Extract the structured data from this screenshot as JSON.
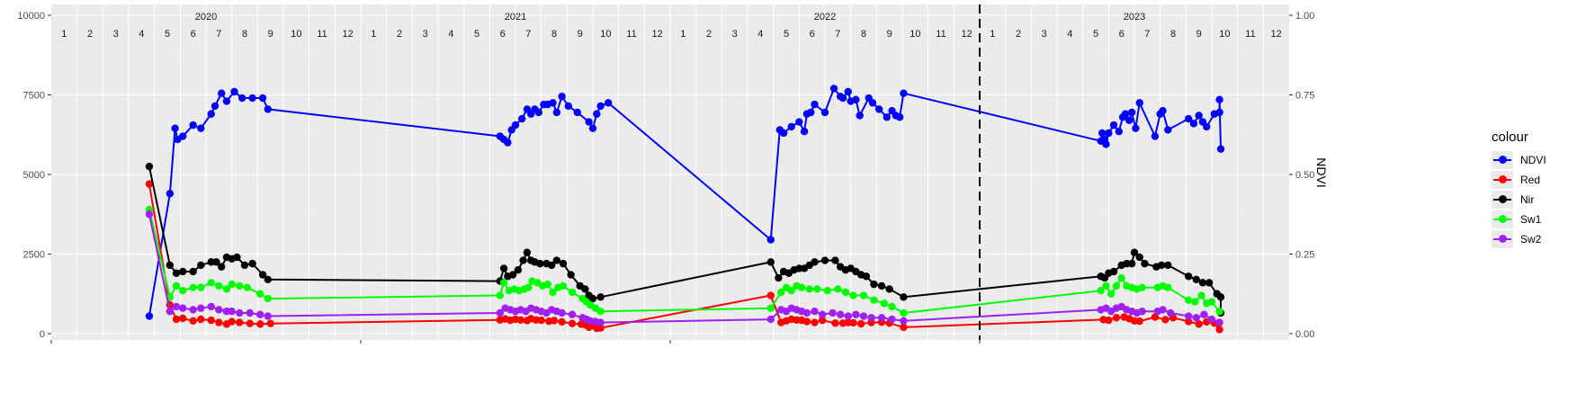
{
  "chart_data": {
    "type": "line",
    "title": "",
    "xlabel": "",
    "ylabel": "",
    "y2label": "NDVI",
    "ylim": [
      0,
      10000
    ],
    "y2lim": [
      0,
      1
    ],
    "yticks": [
      "0",
      "2500",
      "5000",
      "7500",
      "10000"
    ],
    "y2ticks": [
      "0.00",
      "0.25",
      "0.50",
      "0.75",
      "1.00"
    ],
    "xlim": [
      0,
      48
    ],
    "years": [
      {
        "label": "2020",
        "pos": 6
      },
      {
        "label": "2021",
        "pos": 18
      },
      {
        "label": "2022",
        "pos": 30
      },
      {
        "label": "2023",
        "pos": 42
      }
    ],
    "month_labels": [
      "1",
      "2",
      "3",
      "4",
      "5",
      "6",
      "7",
      "8",
      "9",
      "10",
      "11",
      "12",
      "1",
      "2",
      "3",
      "4",
      "5",
      "6",
      "7",
      "8",
      "9",
      "10",
      "11",
      "12",
      "1",
      "2",
      "3",
      "4",
      "5",
      "6",
      "7",
      "8",
      "9",
      "10",
      "11",
      "12",
      "1",
      "2",
      "3",
      "4",
      "5",
      "6",
      "7",
      "8",
      "9",
      "10",
      "11",
      "12"
    ],
    "vline_x": 36,
    "grid": true,
    "legend_title": "colour",
    "legend_position": "right",
    "series": [
      {
        "name": "NDVI",
        "color": "#0000ff",
        "x": [
          3.8,
          4.6,
          4.8,
          4.9,
          5.1,
          5.5,
          5.8,
          6.2,
          6.35,
          6.6,
          6.8,
          7.1,
          7.4,
          7.8,
          8.2,
          8.4,
          17.4,
          17.55,
          17.7,
          17.85,
          18.0,
          18.25,
          18.45,
          18.6,
          18.75,
          18.9,
          19.1,
          19.25,
          19.45,
          19.6,
          19.8,
          20.05,
          20.4,
          20.85,
          21.0,
          21.15,
          21.3,
          21.6,
          27.9,
          28.25,
          28.4,
          28.7,
          29.0,
          29.2,
          29.3,
          29.45,
          29.6,
          30.0,
          30.35,
          30.6,
          30.7,
          30.9,
          31.0,
          31.2,
          31.35,
          31.7,
          31.85,
          32.1,
          32.4,
          32.6,
          32.75,
          32.9,
          33.05,
          40.7,
          40.75,
          40.85,
          40.9,
          41.0,
          41.2,
          41.4,
          41.55,
          41.65,
          41.8,
          41.9,
          42.05,
          42.2,
          42.8,
          43.0,
          43.1,
          43.3,
          44.1,
          44.3,
          44.5,
          44.65,
          44.8,
          45.1,
          45.3,
          45.3,
          45.35
        ],
        "y": [
          0.055,
          0.44,
          0.645,
          0.61,
          0.62,
          0.655,
          0.645,
          0.69,
          0.715,
          0.755,
          0.73,
          0.76,
          0.74,
          0.74,
          0.74,
          0.705,
          0.62,
          0.61,
          0.6,
          0.64,
          0.655,
          0.675,
          0.705,
          0.69,
          0.705,
          0.695,
          0.72,
          0.72,
          0.725,
          0.695,
          0.745,
          0.715,
          0.695,
          0.665,
          0.645,
          0.69,
          0.715,
          0.725,
          0.295,
          0.64,
          0.63,
          0.65,
          0.665,
          0.635,
          0.69,
          0.695,
          0.72,
          0.695,
          0.77,
          0.745,
          0.74,
          0.76,
          0.73,
          0.735,
          0.685,
          0.74,
          0.725,
          0.705,
          0.68,
          0.7,
          0.685,
          0.68,
          0.755,
          0.605,
          0.63,
          0.61,
          0.595,
          0.63,
          0.655,
          0.635,
          0.68,
          0.69,
          0.67,
          0.695,
          0.645,
          0.725,
          0.62,
          0.69,
          0.7,
          0.64,
          0.675,
          0.66,
          0.685,
          0.665,
          0.65,
          0.69,
          0.695,
          0.735,
          0.58
        ]
      },
      {
        "name": "Red",
        "color": "#ff0000",
        "x": [
          3.8,
          4.6,
          4.85,
          5.1,
          5.5,
          5.8,
          6.2,
          6.5,
          6.8,
          7.0,
          7.3,
          7.7,
          8.1,
          8.5,
          17.4,
          17.6,
          17.8,
          18.0,
          18.2,
          18.45,
          18.6,
          18.8,
          19.0,
          19.3,
          19.5,
          19.8,
          20.2,
          20.55,
          20.7,
          20.85,
          21.0,
          21.15,
          21.3,
          27.9,
          28.3,
          28.5,
          28.7,
          28.9,
          29.1,
          29.3,
          29.6,
          29.9,
          30.4,
          30.7,
          30.9,
          31.1,
          31.4,
          31.8,
          32.2,
          32.5,
          33.05,
          40.8,
          41.0,
          41.3,
          41.6,
          41.8,
          42.0,
          42.2,
          42.8,
          43.2,
          43.5,
          44.1,
          44.5,
          44.8,
          45.1,
          45.3
        ],
        "y": [
          4700,
          900,
          450,
          480,
          400,
          450,
          420,
          350,
          300,
          380,
          350,
          320,
          300,
          320,
          430,
          460,
          420,
          450,
          430,
          410,
          470,
          430,
          420,
          390,
          410,
          370,
          320,
          300,
          280,
          200,
          250,
          170,
          180,
          1200,
          350,
          400,
          450,
          430,
          420,
          380,
          350,
          420,
          330,
          330,
          350,
          340,
          310,
          350,
          360,
          330,
          200,
          440,
          420,
          500,
          520,
          470,
          400,
          390,
          520,
          440,
          500,
          380,
          300,
          370,
          330,
          130
        ]
      },
      {
        "name": "Nir",
        "color": "#000000",
        "x": [
          3.8,
          4.6,
          4.85,
          5.1,
          5.5,
          5.8,
          6.2,
          6.4,
          6.6,
          6.8,
          7.0,
          7.2,
          7.5,
          7.8,
          8.2,
          8.4,
          17.4,
          17.55,
          17.7,
          17.9,
          18.1,
          18.3,
          18.45,
          18.6,
          18.75,
          18.95,
          19.2,
          19.4,
          19.6,
          19.85,
          20.15,
          20.5,
          20.7,
          20.85,
          21.0,
          21.3,
          27.9,
          28.2,
          28.4,
          28.6,
          28.8,
          29.0,
          29.2,
          29.4,
          29.6,
          30.0,
          30.4,
          30.6,
          30.8,
          31.0,
          31.2,
          31.4,
          31.6,
          31.9,
          32.2,
          32.5,
          33.05,
          40.7,
          40.85,
          41.0,
          41.2,
          41.5,
          41.7,
          41.9,
          42.0,
          42.2,
          42.4,
          42.85,
          43.05,
          43.3,
          44.1,
          44.4,
          44.65,
          44.9,
          45.2,
          45.35,
          45.35
        ],
        "y": [
          5250,
          2150,
          1900,
          1950,
          1950,
          2150,
          2250,
          2250,
          2100,
          2400,
          2350,
          2400,
          2150,
          2200,
          1850,
          1700,
          1650,
          2050,
          1800,
          1850,
          2000,
          2300,
          2550,
          2300,
          2250,
          2200,
          2200,
          2150,
          2300,
          2200,
          1850,
          1500,
          1400,
          1200,
          1100,
          1150,
          2250,
          1750,
          1950,
          1900,
          2000,
          2050,
          2050,
          2150,
          2250,
          2300,
          2300,
          2100,
          2000,
          2050,
          1950,
          1850,
          1800,
          1550,
          1500,
          1400,
          1150,
          1800,
          1750,
          1900,
          1950,
          2150,
          2200,
          2200,
          2550,
          2400,
          2200,
          2100,
          2150,
          2150,
          1800,
          1700,
          1600,
          1600,
          1250,
          1150,
          650
        ]
      },
      {
        "name": "Sw1",
        "color": "#00ff00",
        "x": [
          3.8,
          4.6,
          4.85,
          5.1,
          5.5,
          5.8,
          6.2,
          6.5,
          6.8,
          7.0,
          7.3,
          7.6,
          8.1,
          8.4,
          17.4,
          17.55,
          17.75,
          17.95,
          18.15,
          18.35,
          18.5,
          18.65,
          18.85,
          19.05,
          19.25,
          19.45,
          19.65,
          19.85,
          20.2,
          20.6,
          20.75,
          20.9,
          21.1,
          21.3,
          27.9,
          28.3,
          28.5,
          28.7,
          28.9,
          29.1,
          29.4,
          29.7,
          30.1,
          30.5,
          30.8,
          31.1,
          31.5,
          31.9,
          32.3,
          32.6,
          33.05,
          40.7,
          40.9,
          41.1,
          41.3,
          41.5,
          41.7,
          41.9,
          42.1,
          42.3,
          42.9,
          43.1,
          43.3,
          44.1,
          44.35,
          44.6,
          44.8,
          45.0,
          45.3
        ],
        "y": [
          3900,
          1150,
          1500,
          1350,
          1450,
          1450,
          1600,
          1500,
          1400,
          1550,
          1500,
          1450,
          1250,
          1100,
          1200,
          1600,
          1350,
          1400,
          1350,
          1400,
          1450,
          1650,
          1600,
          1500,
          1550,
          1300,
          1450,
          1500,
          1300,
          1100,
          1000,
          900,
          800,
          700,
          800,
          1300,
          1450,
          1350,
          1500,
          1450,
          1400,
          1400,
          1350,
          1400,
          1300,
          1200,
          1200,
          1050,
          950,
          850,
          650,
          1350,
          1500,
          1250,
          1500,
          1750,
          1500,
          1450,
          1400,
          1450,
          1450,
          1500,
          1450,
          1050,
          1000,
          1200,
          950,
          1000,
          700
        ]
      },
      {
        "name": "Sw2",
        "color": "#a020f0",
        "x": [
          3.8,
          4.6,
          4.85,
          5.1,
          5.5,
          5.8,
          6.2,
          6.5,
          6.8,
          7.0,
          7.3,
          7.7,
          8.1,
          8.4,
          17.4,
          17.6,
          17.8,
          18.0,
          18.2,
          18.4,
          18.6,
          18.8,
          19.0,
          19.2,
          19.4,
          19.6,
          19.8,
          20.2,
          20.6,
          20.75,
          20.9,
          21.1,
          21.3,
          27.9,
          28.3,
          28.5,
          28.7,
          28.9,
          29.1,
          29.3,
          29.6,
          29.9,
          30.3,
          30.6,
          30.9,
          31.2,
          31.5,
          31.8,
          32.2,
          32.6,
          33.05,
          40.7,
          40.9,
          41.1,
          41.3,
          41.5,
          41.7,
          41.9,
          42.1,
          42.3,
          42.9,
          43.1,
          43.4,
          44.1,
          44.4,
          44.7,
          45.0,
          45.3
        ],
        "y": [
          3750,
          700,
          850,
          800,
          750,
          800,
          850,
          750,
          700,
          700,
          650,
          650,
          600,
          550,
          650,
          800,
          750,
          700,
          750,
          700,
          800,
          750,
          700,
          650,
          750,
          700,
          650,
          600,
          500,
          450,
          400,
          380,
          350,
          450,
          750,
          700,
          800,
          750,
          700,
          650,
          700,
          600,
          650,
          600,
          550,
          600,
          550,
          500,
          500,
          450,
          400,
          750,
          800,
          700,
          800,
          850,
          750,
          700,
          650,
          700,
          700,
          750,
          650,
          550,
          500,
          600,
          450,
          350
        ]
      }
    ]
  }
}
